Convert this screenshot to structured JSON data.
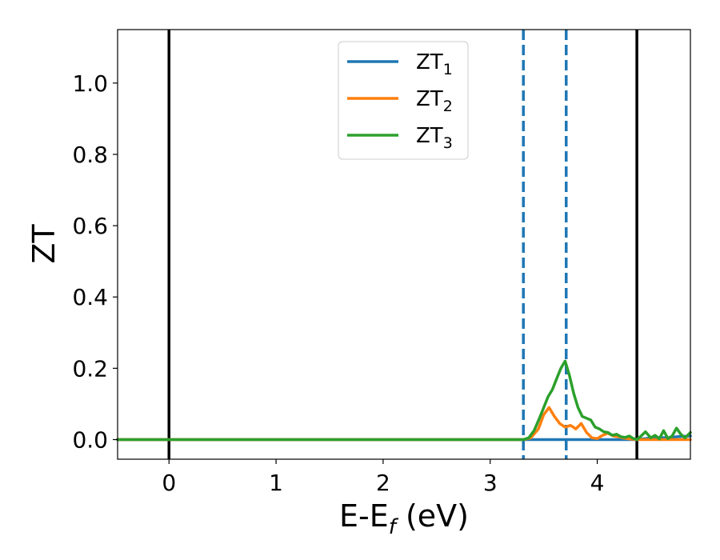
{
  "chart_data": {
    "type": "line",
    "title": "",
    "xlabel": {
      "main": "E-E",
      "sub": "f",
      "suffix": " (eV)"
    },
    "ylabel": "ZT",
    "xlim": [
      -0.48,
      4.87
    ],
    "ylim": [
      -0.055,
      1.15
    ],
    "x_ticks": [
      0,
      1,
      2,
      3,
      4
    ],
    "x_tick_labels": [
      "0",
      "1",
      "2",
      "3",
      "4"
    ],
    "y_ticks": [
      0.0,
      0.2,
      0.4,
      0.6,
      0.8,
      1.0
    ],
    "y_tick_labels": [
      "0.0",
      "0.2",
      "0.4",
      "0.6",
      "0.8",
      "1.0"
    ],
    "grid": false,
    "legend_position": "top-center",
    "vertical_lines": [
      {
        "x": 0.0,
        "style": "solid",
        "color": "#000000"
      },
      {
        "x": 3.31,
        "style": "dashed",
        "color": "#1f77b4"
      },
      {
        "x": 3.71,
        "style": "dashed",
        "color": "#1f77b4"
      },
      {
        "x": 4.37,
        "style": "solid",
        "color": "#000000"
      }
    ],
    "series": [
      {
        "name": "ZT",
        "sub": "1",
        "color": "#1f77b4",
        "x": [
          -0.48,
          4.37,
          4.45,
          4.55,
          4.65,
          4.75,
          4.87
        ],
        "y": [
          0.0,
          0.0,
          0.003,
          0.006,
          0.005,
          0.008,
          0.01
        ]
      },
      {
        "name": "ZT",
        "sub": "2",
        "color": "#ff7f0e",
        "x": [
          -0.48,
          3.31,
          3.38,
          3.45,
          3.5,
          3.55,
          3.6,
          3.65,
          3.7,
          3.75,
          3.8,
          3.85,
          3.9,
          3.95,
          4.0,
          4.05,
          4.1,
          4.15,
          4.2,
          4.25,
          4.3,
          4.37,
          4.87
        ],
        "y": [
          0.0,
          0.0,
          0.005,
          0.03,
          0.07,
          0.09,
          0.065,
          0.045,
          0.035,
          0.04,
          0.03,
          0.045,
          0.02,
          0.005,
          0.003,
          0.012,
          0.018,
          0.01,
          0.008,
          0.004,
          0.002,
          0.0,
          0.0
        ]
      },
      {
        "name": "ZT",
        "sub": "3",
        "color": "#2ca02c",
        "x": [
          -0.48,
          3.31,
          3.36,
          3.41,
          3.46,
          3.5,
          3.54,
          3.58,
          3.62,
          3.66,
          3.7,
          3.74,
          3.78,
          3.82,
          3.86,
          3.9,
          3.94,
          3.98,
          4.02,
          4.06,
          4.1,
          4.14,
          4.18,
          4.22,
          4.26,
          4.3,
          4.33,
          4.37,
          4.41,
          4.45,
          4.5,
          4.54,
          4.58,
          4.62,
          4.66,
          4.7,
          4.74,
          4.78,
          4.82,
          4.87
        ],
        "y": [
          0.0,
          0.0,
          0.005,
          0.025,
          0.06,
          0.09,
          0.12,
          0.14,
          0.17,
          0.2,
          0.22,
          0.18,
          0.13,
          0.09,
          0.065,
          0.06,
          0.055,
          0.035,
          0.03,
          0.022,
          0.02,
          0.012,
          0.015,
          0.008,
          0.006,
          0.01,
          0.004,
          0.0,
          0.01,
          0.022,
          0.005,
          0.012,
          0.002,
          0.025,
          0.003,
          0.01,
          0.032,
          0.015,
          0.005,
          0.02
        ]
      }
    ]
  }
}
